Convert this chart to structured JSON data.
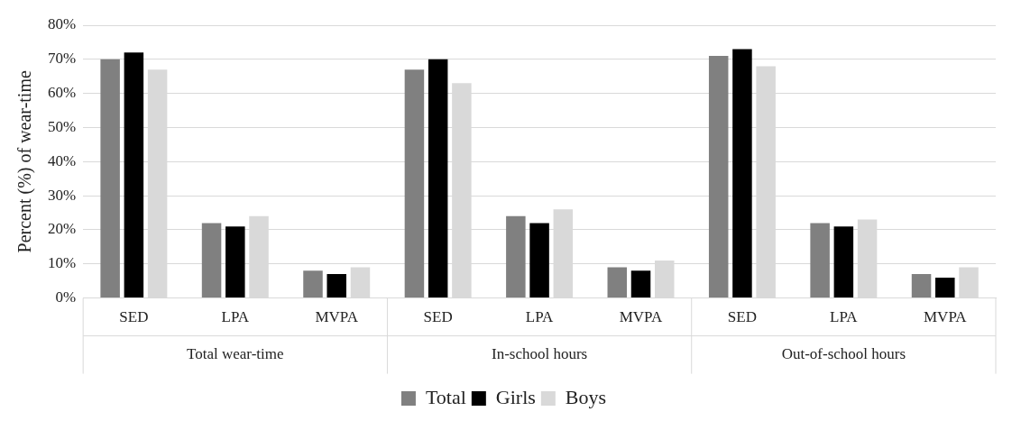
{
  "chart_data": {
    "type": "bar",
    "ylabel": "Percent (%) of wear-time",
    "categories": [
      "SED",
      "LPA",
      "MVPA",
      "SED",
      "LPA",
      "MVPA",
      "SED",
      "LPA",
      "MVPA"
    ],
    "series": [
      {
        "name": "Total",
        "color": "#808080",
        "values": [
          70,
          22,
          8,
          67,
          24,
          9,
          71,
          22,
          7
        ]
      },
      {
        "name": "Girls",
        "color": "#000000",
        "values": [
          72,
          21,
          7,
          70,
          22,
          8,
          73,
          21,
          6
        ]
      },
      {
        "name": "Boys",
        "color": "#d9d9d9",
        "values": [
          67,
          24,
          9,
          63,
          26,
          11,
          68,
          23,
          9
        ]
      }
    ],
    "ylim": [
      0,
      80
    ],
    "yticks": [
      {
        "value": 0,
        "label": "0%"
      },
      {
        "value": 10,
        "label": "10%"
      },
      {
        "value": 20,
        "label": "20%"
      },
      {
        "value": 30,
        "label": "30%"
      },
      {
        "value": 40,
        "label": "40%"
      },
      {
        "value": 50,
        "label": "50%"
      },
      {
        "value": 60,
        "label": "60%"
      },
      {
        "value": 70,
        "label": "70%"
      },
      {
        "value": 80,
        "label": "80%"
      }
    ],
    "grid": "y",
    "legend": "bottom",
    "annotations": [
      "Total wear-time",
      "In-school hours",
      "Out-of-school hours"
    ]
  }
}
